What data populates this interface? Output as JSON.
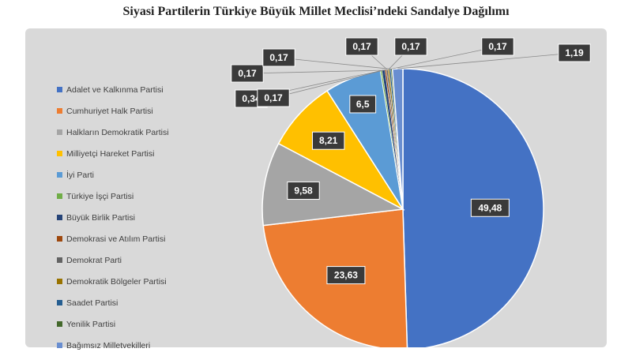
{
  "chart_data": {
    "type": "pie",
    "title": "Siyasi Partilerin Türkiye Büyük Millet Meclisi’ndeki Sandalye Dağılımı",
    "labels": [
      "Adalet ve Kalkınma Partisi",
      "Cumhuriyet Halk Partisi",
      "Halkların Demokratik Partisi",
      "Milliyetçi Hareket Partisi",
      "İyi Parti",
      "Türkiye İşçi Partisi",
      "Büyük Birlik Partisi",
      "Demokrasi ve Atılım Partisi",
      "Demokrat Parti",
      "Demokratik Bölgeler Partisi",
      "Saadet Partisi",
      "Yenilik Partisi",
      "Bağımsız Milletvekilleri"
    ],
    "values": [
      49.48,
      23.63,
      9.58,
      8.21,
      6.5,
      0.17,
      0.34,
      0.17,
      0.17,
      0.17,
      0.17,
      0.17,
      1.19
    ],
    "value_labels": [
      "49,48",
      "23,63",
      "9,58",
      "8,21",
      "6,5",
      "0,17",
      "0,34",
      "0,17",
      "0,17",
      "0,17",
      "0,17",
      "0,17",
      "1,19"
    ],
    "colors": [
      "#4472c4",
      "#ed7d31",
      "#a5a5a5",
      "#ffc000",
      "#5b9bd5",
      "#70ad47",
      "#264478",
      "#9e480e",
      "#636363",
      "#997300",
      "#255e91",
      "#43682b",
      "#698ed0"
    ],
    "legend_position": "left"
  }
}
